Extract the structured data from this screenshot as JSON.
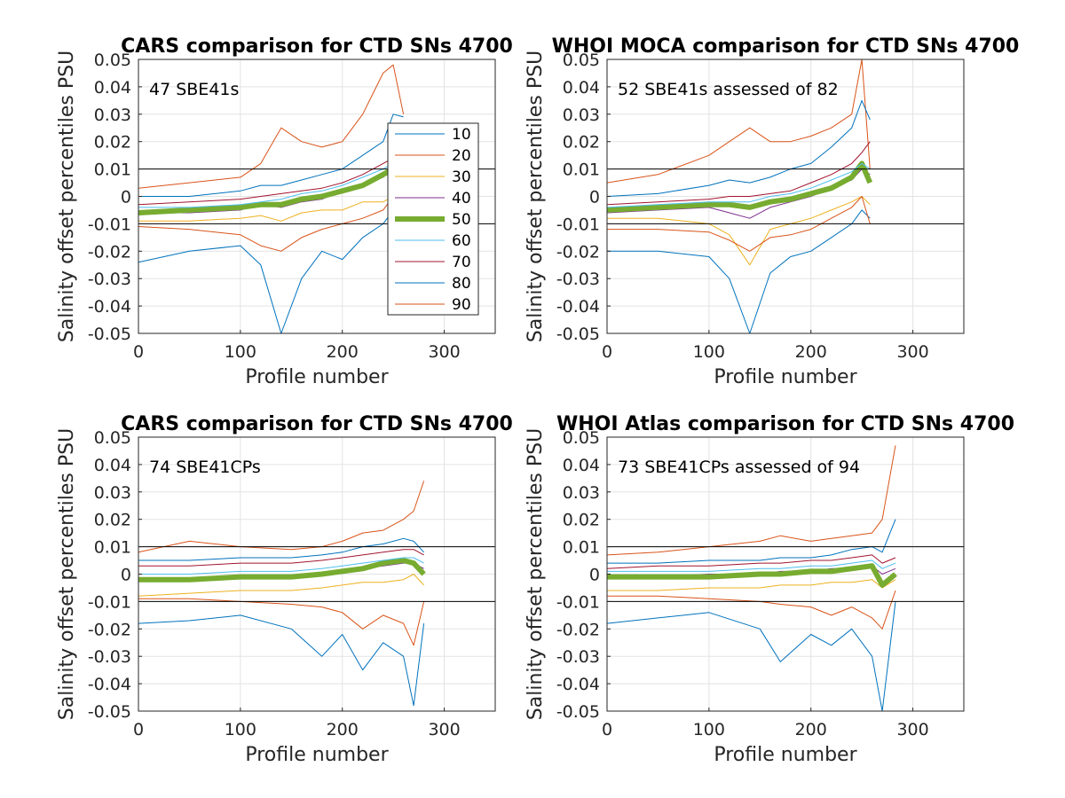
{
  "legend": {
    "entries": [
      "10",
      "20",
      "30",
      "40",
      "50",
      "60",
      "70",
      "80",
      "90"
    ],
    "colors": [
      "#0072BD",
      "#D95319",
      "#EDB120",
      "#7E2F8E",
      "#77AC30",
      "#4DBEEE",
      "#A2142F",
      "#0072BD",
      "#D95319"
    ]
  },
  "chart_data": [
    {
      "type": "line",
      "title": "CARS comparison for CTD SNs 4700",
      "annotation": "47 SBE41s",
      "xlabel": "Profile number",
      "ylabel": "Salinity offset percentiles PSU",
      "xlim": [
        0,
        350
      ],
      "ylim": [
        -0.05,
        0.05
      ],
      "xticks": [
        "0",
        "100",
        "200",
        "300"
      ],
      "yticks": [
        "-0.05",
        "-0.04",
        "-0.03",
        "-0.02",
        "-0.01",
        "0",
        "0.01",
        "0.02",
        "0.03",
        "0.04",
        "0.05"
      ],
      "reference_lines": [
        0.01,
        -0.01
      ],
      "x": [
        0,
        50,
        100,
        120,
        140,
        160,
        180,
        200,
        220,
        240,
        250,
        260
      ],
      "series": [
        {
          "name": "10",
          "values": [
            -0.024,
            -0.02,
            -0.018,
            -0.025,
            -0.05,
            -0.03,
            -0.02,
            -0.023,
            -0.015,
            -0.01,
            -0.005,
            0.0
          ]
        },
        {
          "name": "20",
          "values": [
            0.003,
            0.005,
            0.007,
            0.012,
            0.025,
            0.02,
            0.018,
            0.02,
            0.03,
            0.045,
            0.048,
            0.03
          ]
        },
        {
          "name": "30",
          "values": [
            -0.009,
            -0.009,
            -0.008,
            -0.007,
            -0.009,
            -0.006,
            -0.005,
            -0.005,
            -0.002,
            -0.002,
            0.0,
            0.002
          ]
        },
        {
          "name": "40",
          "values": [
            -0.006,
            -0.006,
            -0.005,
            -0.003,
            -0.004,
            -0.002,
            -0.001,
            0.002,
            0.004,
            0.007,
            0.01,
            0.01
          ]
        },
        {
          "name": "50",
          "values": [
            -0.006,
            -0.005,
            -0.004,
            -0.003,
            -0.003,
            -0.001,
            0.0,
            0.002,
            0.004,
            0.008,
            0.01,
            0.01
          ]
        },
        {
          "name": "60",
          "values": [
            -0.004,
            -0.004,
            -0.003,
            -0.002,
            -0.001,
            0.001,
            0.002,
            0.004,
            0.007,
            0.01,
            0.012,
            0.012
          ]
        },
        {
          "name": "70",
          "values": [
            -0.003,
            -0.002,
            -0.001,
            0.0,
            0.001,
            0.002,
            0.003,
            0.005,
            0.008,
            0.012,
            0.014,
            0.015
          ]
        },
        {
          "name": "80",
          "values": [
            0.0,
            0.0,
            0.002,
            0.004,
            0.004,
            0.006,
            0.008,
            0.01,
            0.015,
            0.02,
            0.03,
            0.029
          ]
        },
        {
          "name": "90",
          "values": [
            -0.011,
            -0.012,
            -0.014,
            -0.018,
            -0.02,
            -0.015,
            -0.012,
            -0.01,
            -0.008,
            -0.005,
            0.0,
            0.002
          ]
        }
      ]
    },
    {
      "type": "line",
      "title": "WHOI MOCA comparison for CTD SNs 4700",
      "annotation": "52 SBE41s assessed of 82",
      "xlabel": "Profile number",
      "ylabel": "Salinity offset percentiles PSU",
      "xlim": [
        0,
        350
      ],
      "ylim": [
        -0.05,
        0.05
      ],
      "xticks": [
        "0",
        "100",
        "200",
        "300"
      ],
      "yticks": [
        "-0.05",
        "-0.04",
        "-0.03",
        "-0.02",
        "-0.01",
        "0",
        "0.01",
        "0.02",
        "0.03",
        "0.04",
        "0.05"
      ],
      "reference_lines": [
        0.01,
        -0.01
      ],
      "x": [
        0,
        50,
        100,
        120,
        140,
        160,
        180,
        200,
        220,
        240,
        250,
        258
      ],
      "series": [
        {
          "name": "10",
          "values": [
            -0.02,
            -0.02,
            -0.022,
            -0.03,
            -0.05,
            -0.028,
            -0.022,
            -0.02,
            -0.015,
            -0.01,
            -0.005,
            -0.008
          ]
        },
        {
          "name": "20",
          "values": [
            0.005,
            0.008,
            0.015,
            0.02,
            0.025,
            0.02,
            0.02,
            0.022,
            0.025,
            0.03,
            0.05,
            0.01
          ]
        },
        {
          "name": "30",
          "values": [
            -0.008,
            -0.008,
            -0.01,
            -0.014,
            -0.025,
            -0.012,
            -0.01,
            -0.008,
            -0.005,
            -0.002,
            0.0,
            -0.003
          ]
        },
        {
          "name": "40",
          "values": [
            -0.006,
            -0.005,
            -0.004,
            -0.006,
            -0.008,
            -0.004,
            -0.002,
            0.0,
            0.003,
            0.006,
            0.01,
            0.008
          ]
        },
        {
          "name": "50",
          "values": [
            -0.005,
            -0.004,
            -0.003,
            -0.003,
            -0.004,
            -0.002,
            -0.001,
            0.001,
            0.003,
            0.007,
            0.012,
            0.005
          ]
        },
        {
          "name": "60",
          "values": [
            -0.004,
            -0.003,
            -0.002,
            -0.002,
            -0.002,
            0.0,
            0.001,
            0.003,
            0.006,
            0.009,
            0.012,
            0.01
          ]
        },
        {
          "name": "70",
          "values": [
            -0.003,
            -0.002,
            -0.001,
            0.0,
            0.0,
            0.001,
            0.002,
            0.005,
            0.008,
            0.012,
            0.016,
            0.02
          ]
        },
        {
          "name": "80",
          "values": [
            0.0,
            0.001,
            0.004,
            0.006,
            0.005,
            0.007,
            0.01,
            0.012,
            0.018,
            0.025,
            0.035,
            0.028
          ]
        },
        {
          "name": "90",
          "values": [
            -0.012,
            -0.012,
            -0.013,
            -0.016,
            -0.02,
            -0.015,
            -0.014,
            -0.012,
            -0.008,
            -0.004,
            0.0,
            -0.01
          ]
        }
      ]
    },
    {
      "type": "line",
      "title": "CARS comparison for CTD SNs 4700",
      "annotation": "74 SBE41CPs",
      "xlabel": "Profile number",
      "ylabel": "Salinity offset percentiles PSU",
      "xlim": [
        0,
        350
      ],
      "ylim": [
        -0.05,
        0.05
      ],
      "xticks": [
        "0",
        "100",
        "200",
        "300"
      ],
      "yticks": [
        "-0.05",
        "-0.04",
        "-0.03",
        "-0.02",
        "-0.01",
        "0",
        "0.01",
        "0.02",
        "0.03",
        "0.04",
        "0.05"
      ],
      "reference_lines": [
        0.01,
        -0.01
      ],
      "x": [
        0,
        50,
        100,
        150,
        180,
        200,
        220,
        240,
        260,
        270,
        280
      ],
      "series": [
        {
          "name": "10",
          "values": [
            -0.018,
            -0.017,
            -0.015,
            -0.02,
            -0.03,
            -0.022,
            -0.035,
            -0.025,
            -0.03,
            -0.048,
            -0.018
          ]
        },
        {
          "name": "20",
          "values": [
            0.008,
            0.012,
            0.01,
            0.009,
            0.01,
            0.012,
            0.015,
            0.016,
            0.02,
            0.023,
            0.034
          ]
        },
        {
          "name": "30",
          "values": [
            -0.008,
            -0.007,
            -0.006,
            -0.006,
            -0.005,
            -0.004,
            -0.003,
            -0.003,
            -0.002,
            0.0,
            -0.004
          ]
        },
        {
          "name": "40",
          "values": [
            -0.002,
            -0.002,
            -0.001,
            -0.001,
            0.0,
            0.001,
            0.002,
            0.003,
            0.004,
            0.004,
            0.002
          ]
        },
        {
          "name": "50",
          "values": [
            -0.002,
            -0.002,
            -0.001,
            -0.001,
            0.0,
            0.001,
            0.002,
            0.004,
            0.005,
            0.004,
            0.0
          ]
        },
        {
          "name": "60",
          "values": [
            0.0,
            0.0,
            0.001,
            0.001,
            0.002,
            0.003,
            0.004,
            0.005,
            0.006,
            0.006,
            0.004
          ]
        },
        {
          "name": "70",
          "values": [
            0.003,
            0.003,
            0.004,
            0.004,
            0.005,
            0.006,
            0.007,
            0.008,
            0.009,
            0.009,
            0.007
          ]
        },
        {
          "name": "80",
          "values": [
            0.005,
            0.005,
            0.006,
            0.006,
            0.007,
            0.008,
            0.01,
            0.011,
            0.013,
            0.012,
            0.008
          ]
        },
        {
          "name": "90",
          "values": [
            -0.009,
            -0.009,
            -0.01,
            -0.011,
            -0.012,
            -0.014,
            -0.02,
            -0.015,
            -0.018,
            -0.026,
            -0.01
          ]
        }
      ]
    },
    {
      "type": "line",
      "title": "WHOI Atlas comparison for CTD SNs 4700",
      "annotation": "73 SBE41CPs assessed of 94",
      "xlabel": "Profile number",
      "ylabel": "Salinity offset percentiles PSU",
      "xlim": [
        0,
        350
      ],
      "ylim": [
        -0.05,
        0.05
      ],
      "xticks": [
        "0",
        "100",
        "200",
        "300"
      ],
      "yticks": [
        "-0.05",
        "-0.04",
        "-0.03",
        "-0.02",
        "-0.01",
        "0",
        "0.01",
        "0.02",
        "0.03",
        "0.04",
        "0.05"
      ],
      "reference_lines": [
        0.01,
        -0.01
      ],
      "x": [
        0,
        50,
        100,
        150,
        170,
        200,
        220,
        240,
        260,
        270,
        283
      ],
      "series": [
        {
          "name": "10",
          "values": [
            -0.018,
            -0.016,
            -0.014,
            -0.02,
            -0.032,
            -0.022,
            -0.026,
            -0.02,
            -0.03,
            -0.05,
            -0.01
          ]
        },
        {
          "name": "20",
          "values": [
            0.007,
            0.008,
            0.01,
            0.012,
            0.014,
            0.012,
            0.013,
            0.014,
            0.015,
            0.02,
            0.047
          ]
        },
        {
          "name": "30",
          "values": [
            -0.006,
            -0.006,
            -0.005,
            -0.005,
            -0.004,
            -0.004,
            -0.003,
            -0.003,
            -0.002,
            -0.005,
            -0.002
          ]
        },
        {
          "name": "40",
          "values": [
            -0.001,
            -0.001,
            0.0,
            0.0,
            0.001,
            0.001,
            0.002,
            0.002,
            0.003,
            0.0,
            0.002
          ]
        },
        {
          "name": "50",
          "values": [
            -0.001,
            -0.001,
            -0.001,
            0.0,
            0.0,
            0.001,
            0.001,
            0.002,
            0.003,
            -0.004,
            0.0
          ]
        },
        {
          "name": "60",
          "values": [
            0.001,
            0.001,
            0.001,
            0.002,
            0.002,
            0.003,
            0.003,
            0.004,
            0.005,
            0.002,
            0.004
          ]
        },
        {
          "name": "70",
          "values": [
            0.002,
            0.003,
            0.003,
            0.004,
            0.004,
            0.005,
            0.005,
            0.006,
            0.007,
            0.004,
            0.006
          ]
        },
        {
          "name": "80",
          "values": [
            0.004,
            0.004,
            0.005,
            0.005,
            0.006,
            0.006,
            0.007,
            0.009,
            0.01,
            0.008,
            0.02
          ]
        },
        {
          "name": "90",
          "values": [
            -0.008,
            -0.008,
            -0.009,
            -0.01,
            -0.011,
            -0.012,
            -0.015,
            -0.012,
            -0.016,
            -0.02,
            -0.006
          ]
        }
      ]
    }
  ]
}
